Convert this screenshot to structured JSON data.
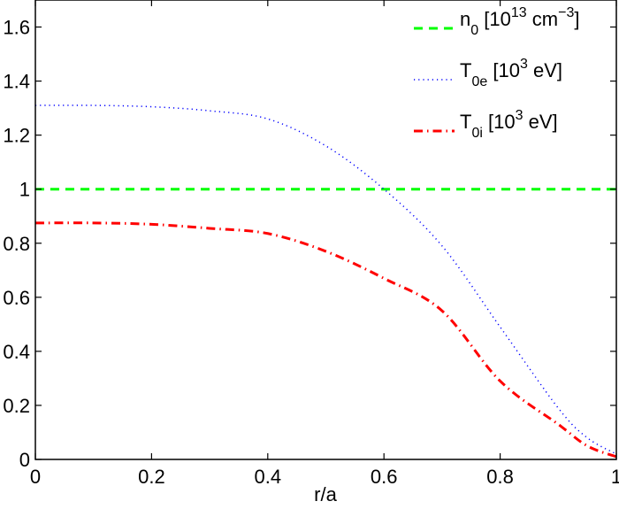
{
  "chart_data": {
    "type": "line",
    "title": "",
    "xlabel": "r/a",
    "ylabel": "",
    "xlim": [
      0,
      1
    ],
    "ylim": [
      0,
      1.7
    ],
    "grid": false,
    "legend_position": "upper right",
    "x_ticks": [
      "0",
      "0.2",
      "0.4",
      "0.6",
      "0.8",
      "1"
    ],
    "y_ticks": [
      "0",
      "0.2",
      "0.4",
      "0.6",
      "0.8",
      "1",
      "1.2",
      "1.4",
      "1.6"
    ],
    "x": [
      0,
      0.1,
      0.2,
      0.3,
      0.4,
      0.5,
      0.6,
      0.7,
      0.8,
      0.9,
      0.95,
      1.0
    ],
    "series": [
      {
        "name": "n_0 [10^13 cm^-3]",
        "legend": {
          "base": "n",
          "sub": "0",
          "bracket_open": " [10",
          "sup": "13",
          "mid": " cm",
          "sup2": "−3",
          "bracket_close": "]"
        },
        "color": "#00ff00",
        "style": "dashed",
        "values": [
          1,
          1,
          1,
          1,
          1,
          1,
          1,
          1,
          1,
          1,
          1,
          1
        ]
      },
      {
        "name": "T_0e [10^3 eV]",
        "legend": {
          "base": "T",
          "sub": "0e",
          "bracket_open": " [10",
          "sup": "3",
          "mid": " eV]"
        },
        "color": "#0000ff",
        "style": "dotted",
        "values": [
          1.31,
          1.31,
          1.305,
          1.29,
          1.26,
          1.16,
          1.0,
          0.79,
          0.49,
          0.19,
          0.08,
          0.02
        ]
      },
      {
        "name": "T_0i [10^3 eV]",
        "legend": {
          "base": "T",
          "sub": "0i",
          "bracket_open": " [10",
          "sup": "3",
          "mid": " eV]"
        },
        "color": "#ff0000",
        "style": "dashdot",
        "values": [
          0.875,
          0.875,
          0.87,
          0.855,
          0.836,
          0.77,
          0.67,
          0.55,
          0.29,
          0.13,
          0.05,
          0.01
        ]
      }
    ]
  }
}
